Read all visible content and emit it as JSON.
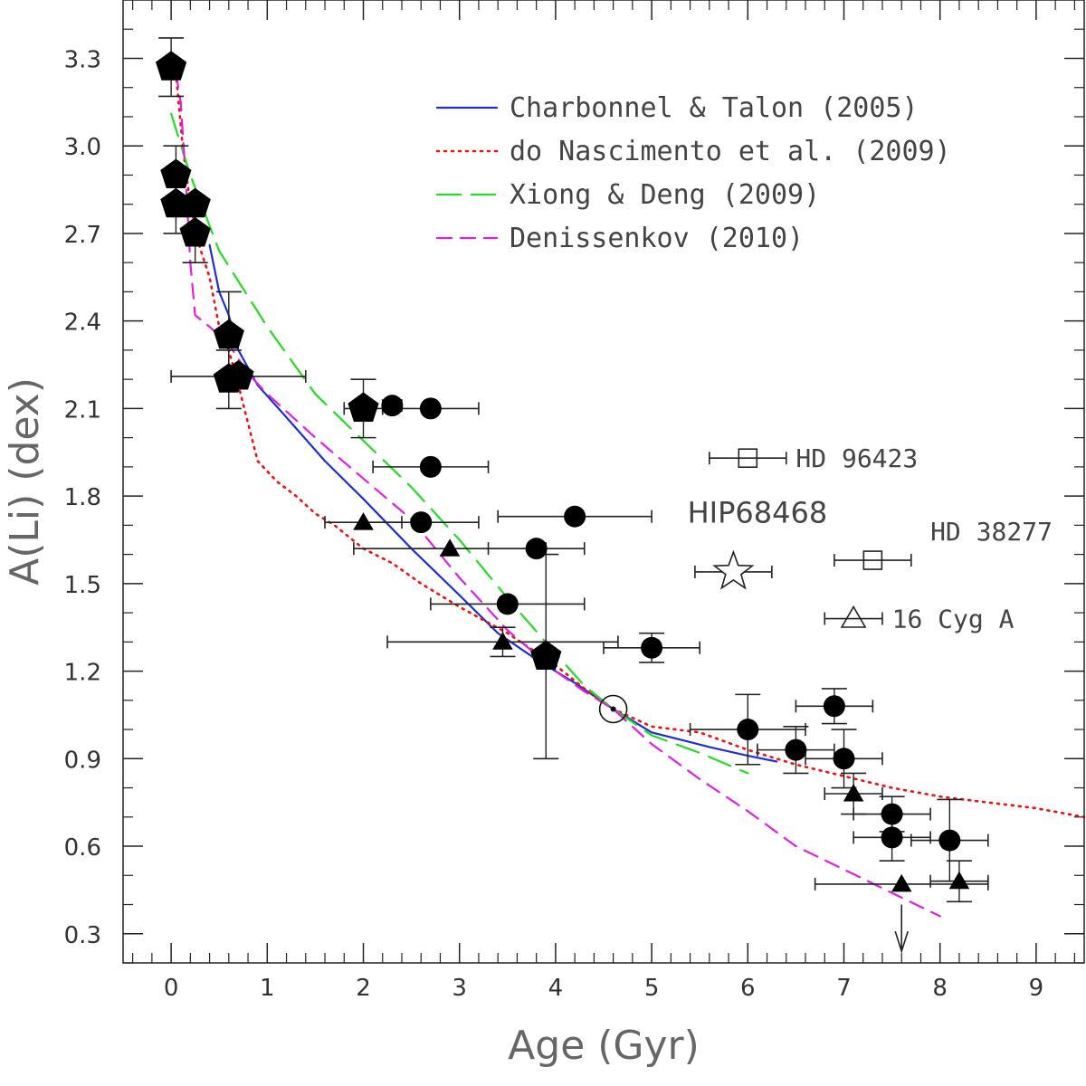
{
  "chart_data": {
    "type": "scatter",
    "xlabel": "Age (Gyr)",
    "ylabel": "A(Li) (dex)",
    "xlim": [
      -0.5,
      9.5
    ],
    "ylim": [
      0.2,
      3.5
    ],
    "xticks": [
      0,
      1,
      2,
      3,
      4,
      5,
      6,
      7,
      8,
      9
    ],
    "yticks": [
      0.3,
      0.6,
      0.9,
      1.2,
      1.5,
      1.8,
      2.1,
      2.4,
      2.7,
      3.0,
      3.3
    ],
    "ytick_labels": [
      "0.3",
      "0.6",
      "0.9",
      "1.2",
      "1.5",
      "1.8",
      "2.1",
      "2.4",
      "2.7",
      "3.0",
      "3.3"
    ],
    "models": [
      {
        "name": "Charbonnel & Talon (2005)",
        "color": "#1f2fd0",
        "dash": "solid",
        "points": [
          [
            0.4,
            2.66
          ],
          [
            0.5,
            2.5
          ],
          [
            0.6,
            2.42
          ],
          [
            0.7,
            2.3
          ],
          [
            0.9,
            2.18
          ],
          [
            1.2,
            2.07
          ],
          [
            1.6,
            1.92
          ],
          [
            2.0,
            1.79
          ],
          [
            2.5,
            1.62
          ],
          [
            3.0,
            1.46
          ],
          [
            3.4,
            1.33
          ],
          [
            3.8,
            1.24
          ],
          [
            4.2,
            1.16
          ],
          [
            4.6,
            1.07
          ],
          [
            5.0,
            0.99
          ],
          [
            5.6,
            0.94
          ],
          [
            6.0,
            0.91
          ],
          [
            6.3,
            0.89
          ]
        ]
      },
      {
        "name": "do Nascimento et al. (2009)",
        "color": "#ee1111",
        "dash": "dotted",
        "points": [
          [
            0.05,
            3.25
          ],
          [
            0.12,
            3.0
          ],
          [
            0.2,
            2.8
          ],
          [
            0.3,
            2.65
          ],
          [
            0.4,
            2.55
          ],
          [
            0.5,
            2.38
          ],
          [
            0.6,
            2.3
          ],
          [
            0.7,
            2.18
          ],
          [
            0.9,
            1.92
          ],
          [
            1.1,
            1.85
          ],
          [
            1.3,
            1.8
          ],
          [
            1.5,
            1.74
          ],
          [
            1.7,
            1.7
          ],
          [
            2.0,
            1.62
          ],
          [
            2.3,
            1.57
          ],
          [
            2.6,
            1.5
          ],
          [
            3.0,
            1.42
          ],
          [
            3.5,
            1.33
          ],
          [
            4.0,
            1.22
          ],
          [
            4.3,
            1.14
          ],
          [
            4.6,
            1.07
          ],
          [
            5.0,
            1.01
          ],
          [
            5.5,
            0.99
          ],
          [
            6.0,
            0.93
          ],
          [
            6.5,
            0.88
          ],
          [
            7.0,
            0.84
          ],
          [
            7.5,
            0.8
          ],
          [
            8.0,
            0.77
          ],
          [
            8.5,
            0.75
          ],
          [
            9.0,
            0.73
          ],
          [
            9.5,
            0.7
          ]
        ]
      },
      {
        "name": "Xiong & Deng (2009)",
        "color": "#22dd22",
        "dash": "longdash",
        "points": [
          [
            0.0,
            3.11
          ],
          [
            0.2,
            2.9
          ],
          [
            0.5,
            2.64
          ],
          [
            1.0,
            2.38
          ],
          [
            1.5,
            2.15
          ],
          [
            2.0,
            1.99
          ],
          [
            2.5,
            1.83
          ],
          [
            3.0,
            1.65
          ],
          [
            3.5,
            1.45
          ],
          [
            4.0,
            1.26
          ],
          [
            4.3,
            1.15
          ],
          [
            4.6,
            1.07
          ],
          [
            5.0,
            0.98
          ],
          [
            5.5,
            0.92
          ],
          [
            6.0,
            0.85
          ]
        ]
      },
      {
        "name": "Denissenkov (2010)",
        "color": "#e020e0",
        "dash": "dashed",
        "points": [
          [
            0.05,
            3.25
          ],
          [
            0.1,
            3.15
          ],
          [
            0.15,
            2.9
          ],
          [
            0.2,
            2.6
          ],
          [
            0.25,
            2.42
          ],
          [
            0.4,
            2.38
          ],
          [
            0.6,
            2.32
          ],
          [
            0.8,
            2.22
          ],
          [
            1.0,
            2.15
          ],
          [
            1.5,
            2.0
          ],
          [
            2.0,
            1.86
          ],
          [
            2.5,
            1.72
          ],
          [
            3.0,
            1.52
          ],
          [
            3.5,
            1.34
          ],
          [
            4.0,
            1.2
          ],
          [
            4.3,
            1.13
          ],
          [
            4.6,
            1.07
          ],
          [
            5.0,
            0.95
          ],
          [
            5.5,
            0.83
          ],
          [
            6.0,
            0.72
          ],
          [
            6.5,
            0.6
          ],
          [
            7.0,
            0.52
          ],
          [
            7.5,
            0.44
          ],
          [
            8.0,
            0.36
          ]
        ]
      }
    ],
    "series": [
      {
        "name": "Pentagons",
        "marker": "pentagon",
        "points": [
          {
            "x": 0.0,
            "y": 3.27,
            "xerr": 0,
            "yerr": 0.1
          },
          {
            "x": 0.05,
            "y": 2.9,
            "xerr": 0,
            "yerr": 0.1
          },
          {
            "x": 0.05,
            "y": 2.8,
            "xerr": 0,
            "yerr": 0.1
          },
          {
            "x": 0.25,
            "y": 2.8,
            "xerr": 0,
            "yerr": 0
          },
          {
            "x": 0.25,
            "y": 2.7,
            "xerr": 0,
            "yerr": 0.1
          },
          {
            "x": 0.6,
            "y": 2.35,
            "xerr": 0,
            "yerr": 0.15
          },
          {
            "x": 0.6,
            "y": 2.2,
            "xerr": 0,
            "yerr": 0.1
          },
          {
            "x": 0.7,
            "y": 2.21,
            "xerr": 0.7,
            "yerr": 0
          },
          {
            "x": 2.0,
            "y": 2.1,
            "xerr": 0.2,
            "yerr": 0.1
          },
          {
            "x": 3.9,
            "y": 1.25,
            "xerr": 0,
            "yerr": 0.35
          }
        ]
      },
      {
        "name": "Circles",
        "marker": "circle",
        "points": [
          {
            "x": 2.3,
            "y": 2.11,
            "xerr": 0.1,
            "yerr": 0
          },
          {
            "x": 2.7,
            "y": 2.1,
            "xerr": 0.5,
            "yerr": 0
          },
          {
            "x": 2.7,
            "y": 1.9,
            "xerr": 0.6,
            "yerr": 0
          },
          {
            "x": 2.6,
            "y": 1.71,
            "xerr": 0.6,
            "yerr": 0
          },
          {
            "x": 4.2,
            "y": 1.73,
            "xerr": 0.8,
            "yerr": 0
          },
          {
            "x": 3.8,
            "y": 1.62,
            "xerr": 0.5,
            "yerr": 0
          },
          {
            "x": 3.5,
            "y": 1.43,
            "xerr": 0.8,
            "yerr": 0
          },
          {
            "x": 5.0,
            "y": 1.28,
            "xerr": 0.5,
            "yerr": 0.05
          },
          {
            "x": 6.0,
            "y": 1.0,
            "xerr": 0.6,
            "yerr": 0.12
          },
          {
            "x": 6.5,
            "y": 0.93,
            "xerr": 0.4,
            "yerr": 0.08
          },
          {
            "x": 6.9,
            "y": 1.08,
            "xerr": 0.4,
            "yerr": 0.06
          },
          {
            "x": 7.0,
            "y": 0.9,
            "xerr": 0.4,
            "yerr": 0.1
          },
          {
            "x": 7.5,
            "y": 0.71,
            "xerr": 0.4,
            "yerr": 0.06
          },
          {
            "x": 7.5,
            "y": 0.63,
            "xerr": 0.4,
            "yerr": 0.08
          },
          {
            "x": 8.1,
            "y": 0.62,
            "xerr": 0.4,
            "yerr": 0.14
          }
        ]
      },
      {
        "name": "Triangles",
        "marker": "triangle",
        "points": [
          {
            "x": 2.0,
            "y": 1.71,
            "xerr": 0.4,
            "yerr": 0
          },
          {
            "x": 2.9,
            "y": 1.62,
            "xerr": 1.0,
            "yerr": 0
          },
          {
            "x": 3.45,
            "y": 1.3,
            "xerr": 1.2,
            "yerr": 0.05
          },
          {
            "x": 7.1,
            "y": 0.78,
            "xerr": 0.3,
            "yerr": 0.07
          },
          {
            "x": 7.6,
            "y": 0.47,
            "xerr": 0.9,
            "yerr": 0
          },
          {
            "x": 8.2,
            "y": 0.48,
            "xerr": 0.3,
            "yerr": 0.07
          }
        ]
      }
    ],
    "named_stars": [
      {
        "label": "HD 96423",
        "marker": "square-open",
        "x": 6.0,
        "y": 1.93,
        "xerr": 0.4,
        "yerr": 0,
        "label_dx": 0.5,
        "label_dy": 0
      },
      {
        "label": "HD 38277",
        "marker": "square-open",
        "x": 7.3,
        "y": 1.58,
        "xerr": 0.4,
        "yerr": 0,
        "label_dx": 0.6,
        "label_dy": 0.1
      },
      {
        "label": "16 Cyg A",
        "marker": "triangle-open",
        "x": 7.1,
        "y": 1.38,
        "xerr": 0.3,
        "yerr": 0,
        "label_dx": 0.4,
        "label_dy": 0
      },
      {
        "label": "HIP68468",
        "marker": "star-open",
        "x": 5.85,
        "y": 1.54,
        "xerr": 0.4,
        "yerr": 0,
        "label_dx": -0.6,
        "label_dy": 0.2
      }
    ],
    "sun": {
      "label": "Sun",
      "x": 4.6,
      "y": 1.07
    },
    "upper_limit": {
      "x": 7.6,
      "y_from": 0.4,
      "y_to": 0.24
    }
  }
}
